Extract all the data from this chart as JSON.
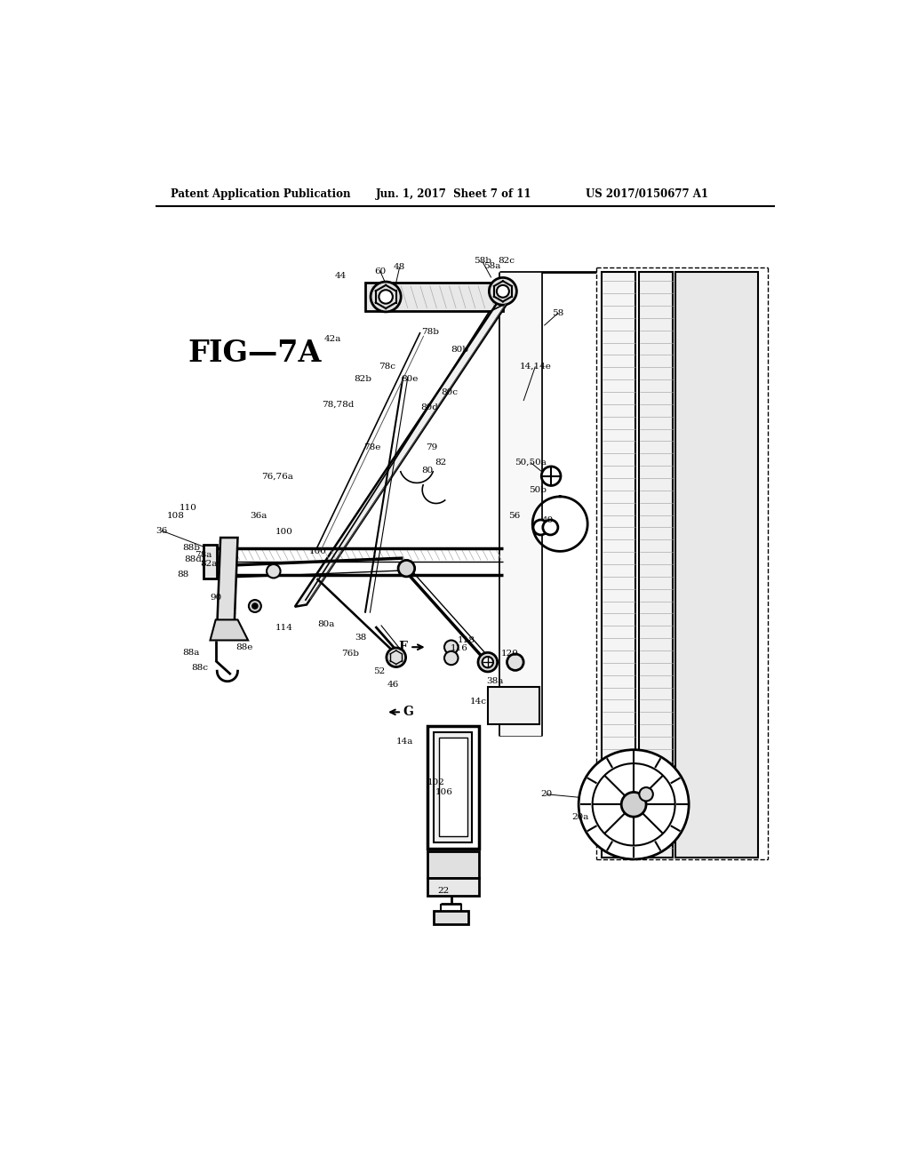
{
  "header_left": "Patent Application Publication",
  "header_mid": "Jun. 1, 2017  Sheet 7 of 11",
  "header_right": "US 2017/0150677 A1",
  "fig_label": "FIG—7A",
  "bg_color": "#ffffff",
  "lc": "#000000",
  "fig_width": 10.24,
  "fig_height": 13.2,
  "dpi": 100
}
